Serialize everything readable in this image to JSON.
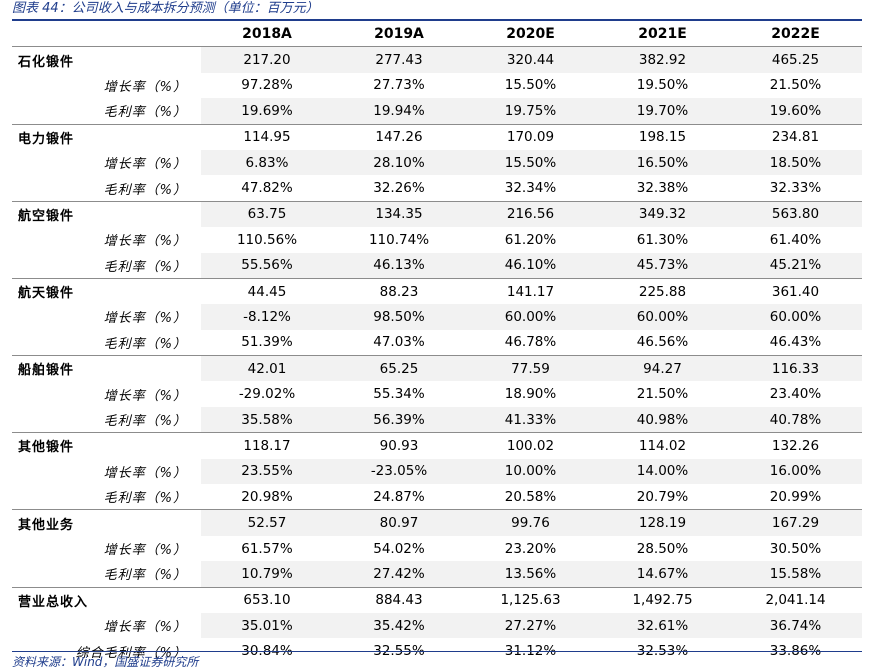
{
  "caption": "图表 44：公司收入与成本拆分预测（单位：百万元）",
  "source": "资料来源：Wind，国盛证券研究所",
  "table": {
    "headers": [
      "",
      "2018A",
      "2019A",
      "2020E",
      "2021E",
      "2022E"
    ],
    "groups": [
      {
        "name": "石化锻件",
        "values": [
          "217.20",
          "277.43",
          "320.44",
          "382.92",
          "465.25"
        ],
        "rows": [
          {
            "label": "增长率（%）",
            "values": [
              "97.28%",
              "27.73%",
              "15.50%",
              "19.50%",
              "21.50%"
            ]
          },
          {
            "label": "毛利率（%）",
            "values": [
              "19.69%",
              "19.94%",
              "19.75%",
              "19.70%",
              "19.60%"
            ]
          }
        ]
      },
      {
        "name": "电力锻件",
        "values": [
          "114.95",
          "147.26",
          "170.09",
          "198.15",
          "234.81"
        ],
        "rows": [
          {
            "label": "增长率（%）",
            "values": [
              "6.83%",
              "28.10%",
              "15.50%",
              "16.50%",
              "18.50%"
            ]
          },
          {
            "label": "毛利率（%）",
            "values": [
              "47.82%",
              "32.26%",
              "32.34%",
              "32.38%",
              "32.33%"
            ]
          }
        ]
      },
      {
        "name": "航空锻件",
        "values": [
          "63.75",
          "134.35",
          "216.56",
          "349.32",
          "563.80"
        ],
        "rows": [
          {
            "label": "增长率（%）",
            "values": [
              "110.56%",
              "110.74%",
              "61.20%",
              "61.30%",
              "61.40%"
            ]
          },
          {
            "label": "毛利率（%）",
            "values": [
              "55.56%",
              "46.13%",
              "46.10%",
              "45.73%",
              "45.21%"
            ]
          }
        ]
      },
      {
        "name": "航天锻件",
        "values": [
          "44.45",
          "88.23",
          "141.17",
          "225.88",
          "361.40"
        ],
        "rows": [
          {
            "label": "增长率（%）",
            "values": [
              "-8.12%",
              "98.50%",
              "60.00%",
              "60.00%",
              "60.00%"
            ]
          },
          {
            "label": "毛利率（%）",
            "values": [
              "51.39%",
              "47.03%",
              "46.78%",
              "46.56%",
              "46.43%"
            ]
          }
        ]
      },
      {
        "name": "船舶锻件",
        "values": [
          "42.01",
          "65.25",
          "77.59",
          "94.27",
          "116.33"
        ],
        "rows": [
          {
            "label": "增长率（%）",
            "values": [
              "-29.02%",
              "55.34%",
              "18.90%",
              "21.50%",
              "23.40%"
            ]
          },
          {
            "label": "毛利率（%）",
            "values": [
              "35.58%",
              "56.39%",
              "41.33%",
              "40.98%",
              "40.78%"
            ]
          }
        ]
      },
      {
        "name": "其他锻件",
        "values": [
          "118.17",
          "90.93",
          "100.02",
          "114.02",
          "132.26"
        ],
        "rows": [
          {
            "label": "增长率（%）",
            "values": [
              "23.55%",
              "-23.05%",
              "10.00%",
              "14.00%",
              "16.00%"
            ]
          },
          {
            "label": "毛利率（%）",
            "values": [
              "20.98%",
              "24.87%",
              "20.58%",
              "20.79%",
              "20.99%"
            ]
          }
        ]
      },
      {
        "name": "其他业务",
        "values": [
          "52.57",
          "80.97",
          "99.76",
          "128.19",
          "167.29"
        ],
        "rows": [
          {
            "label": "增长率（%）",
            "values": [
              "61.57%",
              "54.02%",
              "23.20%",
              "28.50%",
              "30.50%"
            ]
          },
          {
            "label": "毛利率（%）",
            "values": [
              "10.79%",
              "27.42%",
              "13.56%",
              "14.67%",
              "15.58%"
            ]
          }
        ]
      },
      {
        "name": "营业总收入",
        "values": [
          "653.10",
          "884.43",
          "1,125.63",
          "1,492.75",
          "2,041.14"
        ],
        "rows": [
          {
            "label": "增长率（%）",
            "values": [
              "35.01%",
              "35.42%",
              "27.27%",
              "32.61%",
              "36.74%"
            ]
          },
          {
            "label": "综合毛利率（%）",
            "values": [
              "30.84%",
              "32.55%",
              "31.12%",
              "32.53%",
              "33.86%"
            ]
          }
        ]
      }
    ]
  }
}
